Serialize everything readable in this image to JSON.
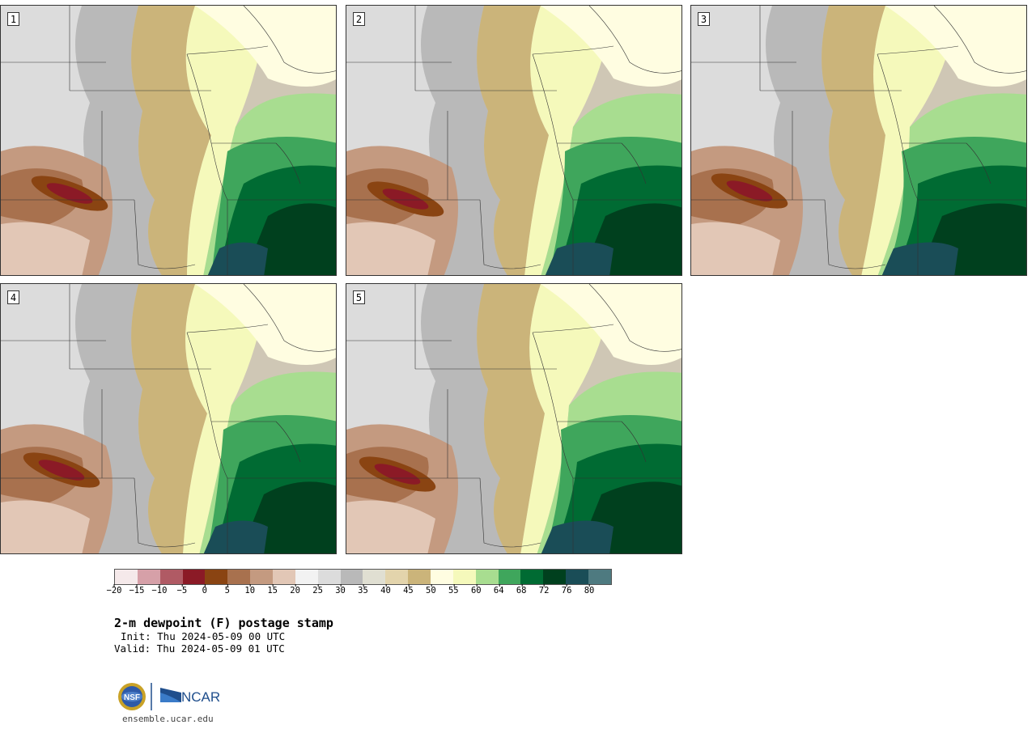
{
  "panels": [
    {
      "label": "1"
    },
    {
      "label": "2"
    },
    {
      "label": "3"
    },
    {
      "label": "4"
    },
    {
      "label": "5"
    }
  ],
  "legend": {
    "colors": [
      "#f5e9ea",
      "#d6a0a8",
      "#b05a64",
      "#8b1a26",
      "#8a4412",
      "#a8714e",
      "#c49a80",
      "#e2c7b6",
      "#f2f2f2",
      "#dcdcdc",
      "#b9b9b9",
      "#e0dfd2",
      "#e3d4ac",
      "#cbb47a",
      "#fffde1",
      "#f5f9bb",
      "#a8dd90",
      "#3fa65c",
      "#006b33",
      "#00401e",
      "#1a4d57",
      "#4e7a80"
    ],
    "ticks": [
      "−20",
      "−15",
      "−10",
      "−5",
      "0",
      "5",
      "10",
      "15",
      "20",
      "25",
      "30",
      "35",
      "40",
      "45",
      "50",
      "55",
      "60",
      "64",
      "68",
      "72",
      "76",
      "80"
    ]
  },
  "title": "2-m dewpoint (F) postage stamp",
  "init": "Init: Thu 2024-05-09 00 UTC",
  "valid": "Valid: Thu 2024-05-09 01 UTC",
  "logos": {
    "left": "NSF",
    "right": "NCAR"
  },
  "site": "ensemble.ucar.edu"
}
